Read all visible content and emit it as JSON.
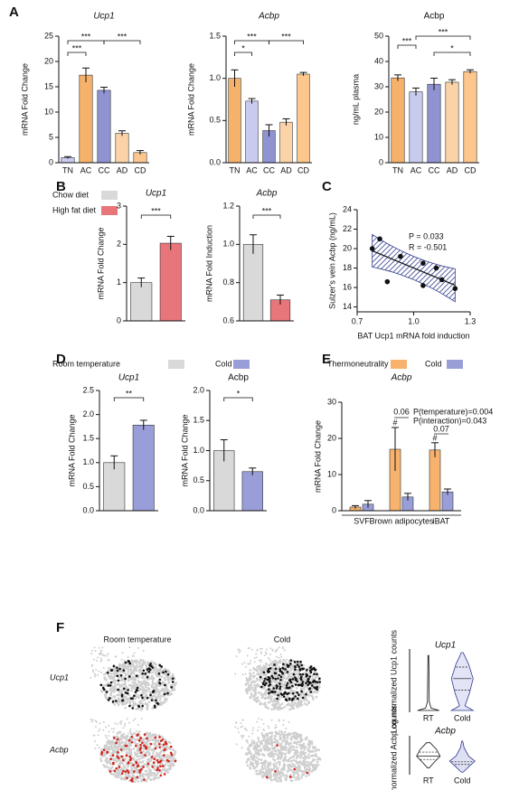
{
  "panel_labels": [
    "A",
    "B",
    "C",
    "D",
    "E",
    "F"
  ],
  "umap": {
    "columns": [
      "Room temperature",
      "Cold"
    ],
    "rows": [
      "Ucp1",
      "Acbp"
    ]
  },
  "chart_data": [
    {
      "type": "bar",
      "title": "Ucp1",
      "ylabel": "mRNA Fold Change",
      "categories": [
        "TN",
        "AC",
        "CC",
        "AD",
        "CD"
      ],
      "values": [
        1,
        17.3,
        14.3,
        5.8,
        2
      ],
      "errors": [
        0.2,
        1.4,
        0.6,
        0.5,
        0.4
      ],
      "colors": [
        "#c9cbee",
        "#f6b26b",
        "#8f93d2",
        "#fbd3a6",
        "#fcc68d"
      ],
      "ylim": [
        0,
        25
      ],
      "yticks": [
        0,
        5,
        10,
        15,
        20,
        25
      ],
      "annotations": [
        "***",
        "***",
        "***"
      ]
    },
    {
      "type": "bar",
      "title": "Acbp",
      "ylabel": "mRNA Fold Change",
      "categories": [
        "TN",
        "AC",
        "CC",
        "AD",
        "CD"
      ],
      "values": [
        1.0,
        0.73,
        0.38,
        0.48,
        1.05
      ],
      "errors": [
        0.1,
        0.03,
        0.07,
        0.04,
        0.02
      ],
      "colors": [
        "#f6b26b",
        "#c9cbee",
        "#8f93d2",
        "#fbd3a6",
        "#fcc68d"
      ],
      "ylim": [
        0,
        1.5
      ],
      "yticks": [
        {
          "value": 0,
          "label": "0.0"
        },
        {
          "value": 0.5,
          "label": "0.5"
        },
        {
          "value": 1,
          "label": "1.0"
        },
        {
          "value": 1.5,
          "label": "1.5"
        }
      ],
      "annotations": [
        "*",
        "***",
        "***"
      ]
    },
    {
      "type": "bar",
      "title": "Acbp",
      "ylabel": "ng/mL plasma",
      "categories": [
        "TN",
        "AC",
        "CC",
        "AD",
        "CD"
      ],
      "values": [
        33.5,
        28,
        31,
        31.8,
        36
      ],
      "errors": [
        1.2,
        1.5,
        2.4,
        1,
        0.7
      ],
      "colors": [
        "#f6b26b",
        "#c9cbee",
        "#8f93d2",
        "#fbd3a6",
        "#fcc68d"
      ],
      "ylim": [
        0,
        50
      ],
      "yticks": [
        0,
        10,
        20,
        30,
        40,
        50
      ],
      "annotations": [
        "***",
        "***",
        "*"
      ]
    },
    {
      "type": "bar",
      "title": "Ucp1",
      "ylabel": "mRNA Fold Change",
      "categories": [
        null,
        null
      ],
      "values": [
        1.0,
        2.03
      ],
      "errors": [
        0.12,
        0.18
      ],
      "colors": [
        "#d9d9d9",
        "#e8757a"
      ],
      "ylim": [
        0,
        3
      ],
      "yticks": [
        0,
        1,
        2,
        3
      ],
      "annotations": [
        "***"
      ],
      "legend": [
        {
          "name": "Chow diet",
          "color": "#d9d9d9"
        },
        {
          "name": "High fat diet",
          "color": "#e8757a"
        }
      ]
    },
    {
      "type": "bar",
      "title": "Acbp",
      "ylabel": "mRNA Fold Induction",
      "categories": [
        null,
        null
      ],
      "values": [
        1.0,
        0.71
      ],
      "errors": [
        0.05,
        0.025
      ],
      "colors": [
        "#d9d9d9",
        "#e8757a"
      ],
      "ylim": [
        0.6,
        1.2
      ],
      "yticks": [
        {
          "value": 0.6,
          "label": "0.6"
        },
        {
          "value": 0.8,
          "label": "0.8"
        },
        {
          "value": 1,
          "label": "1.0"
        },
        {
          "value": 1.2,
          "label": "1.2"
        }
      ],
      "annotations": [
        "***"
      ]
    },
    {
      "type": "scatter",
      "xlabel": "BAT Ucp1 mRNA fold induction",
      "ylabel": "Sulzer's vein Acbp (ng/mL)",
      "x": [
        0.78,
        0.82,
        0.86,
        0.93,
        1.05,
        1.05,
        1.12,
        1.15,
        1.22
      ],
      "values": [
        20,
        21,
        16.6,
        19.2,
        18.5,
        16.2,
        18,
        16.8,
        15.9
      ],
      "color": "#111111",
      "band_color": "#2e3a8c",
      "xlim": [
        0.7,
        1.3
      ],
      "xticks": [
        {
          "value": 0.7,
          "label": "0.7"
        },
        {
          "value": 1,
          "label": "1.0"
        },
        {
          "value": 1.3,
          "label": "1.3"
        }
      ],
      "ylim": [
        13.5,
        24
      ],
      "yticks": [
        14,
        16,
        18,
        20,
        22,
        24
      ],
      "annotations": [
        "P = 0.033",
        "R = -0.501"
      ]
    },
    {
      "type": "bar",
      "title": "Ucp1",
      "ylabel": "mRNA Fold Change",
      "categories": [
        null,
        null
      ],
      "values": [
        1.0,
        1.78
      ],
      "errors": [
        0.14,
        0.1
      ],
      "colors": [
        "#d9d9d9",
        "#9a9ed8"
      ],
      "ylim": [
        0,
        2.5
      ],
      "yticks": [
        {
          "value": 0,
          "label": "0.0"
        },
        {
          "value": 0.5,
          "label": "0.5"
        },
        {
          "value": 1,
          "label": "1.0"
        },
        {
          "value": 1.5,
          "label": "1.5"
        },
        {
          "value": 2,
          "label": "2.0"
        },
        {
          "value": 2.5,
          "label": "2.5"
        }
      ],
      "annotations": [
        "**"
      ],
      "legend": [
        {
          "name": "Room temperature",
          "color": "#d9d9d9"
        },
        {
          "name": "Cold",
          "color": "#9a9ed8"
        }
      ]
    },
    {
      "type": "bar",
      "title": "Acbp",
      "ylabel": "mRNA Fold Change",
      "categories": [
        null,
        null
      ],
      "values": [
        1.0,
        0.65
      ],
      "errors": [
        0.18,
        0.06
      ],
      "colors": [
        "#d9d9d9",
        "#9a9ed8"
      ],
      "ylim": [
        0,
        2
      ],
      "yticks": [
        {
          "value": 0,
          "label": "0.0"
        },
        {
          "value": 0.5,
          "label": "0.5"
        },
        {
          "value": 1,
          "label": "1.0"
        },
        {
          "value": 1.5,
          "label": "1.5"
        },
        {
          "value": 2,
          "label": "2.0"
        }
      ],
      "annotations": [
        "*"
      ]
    },
    {
      "type": "grouped_bar",
      "title": "Acbp",
      "ylabel": "mRNA Fold Change",
      "categories": [
        "SVF",
        "Brown adipocytes",
        "iBAT"
      ],
      "series": [
        {
          "name": "Thermoneutrality",
          "color": "#f7b36d",
          "values": [
            1,
            17,
            16.8
          ],
          "errors": [
            0.4,
            6,
            2
          ]
        },
        {
          "name": "Cold",
          "color": "#9a9ed8",
          "values": [
            1.8,
            3.8,
            5.2
          ],
          "errors": [
            1,
            1,
            0.8
          ]
        }
      ],
      "ylim": [
        0,
        30
      ],
      "yticks": [
        0,
        10,
        20,
        30
      ],
      "annotations": [
        "0.06",
        "0.07",
        "#",
        "#",
        "P(temperature)=0.004",
        "P(interaction)=0.043"
      ]
    },
    {
      "type": "violin",
      "title": "Ucp1",
      "ylabel": "Log normalized Ucp1 counts",
      "categories": [
        "RT",
        "Cold"
      ]
    },
    {
      "type": "violin",
      "title": "Acbp",
      "ylabel": "Log normalized Acbp counts",
      "categories": [
        "RT",
        "Cold"
      ]
    }
  ]
}
